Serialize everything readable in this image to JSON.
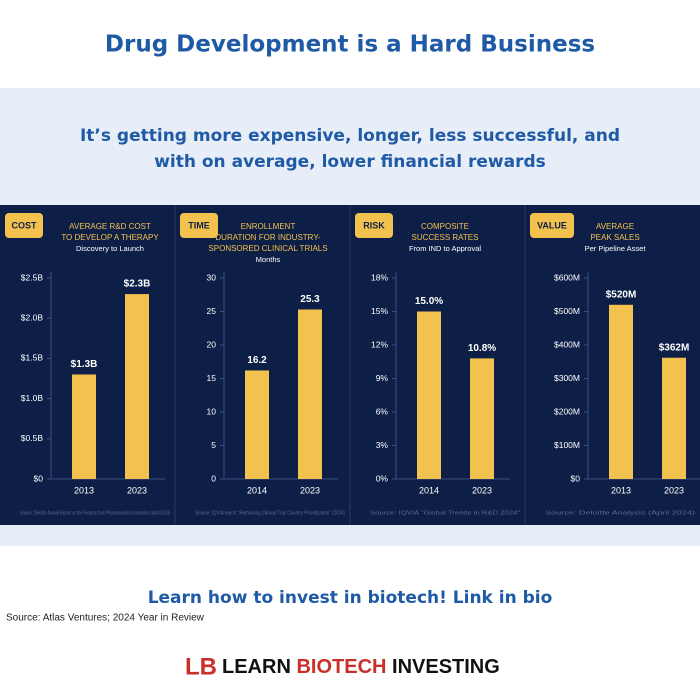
{
  "header": {
    "title": "Drug Development is a Hard Business",
    "subtitle": [
      "It’s getting more expensive, longer, less successful, and",
      "with on average, lower financial rewards"
    ]
  },
  "footer": {
    "cta": "Learn how to invest in biotech! Link in bio",
    "source": "Source: Atlas Ventures; 2024 Year in Review",
    "logo_mark": "LB",
    "logo": [
      "LEARN",
      "BIOTECH",
      "INVESTING"
    ]
  },
  "chart_data": [
    {
      "type": "bar",
      "tag": "COST",
      "title": [
        "AVERAGE R&D COST",
        "TO DEVELOP A THERAPY"
      ],
      "subtitle": "Discovery to Launch",
      "categories": [
        "2013",
        "2023"
      ],
      "values": [
        1.3,
        2.3
      ],
      "value_labels": [
        "$1.3B",
        "$2.3B"
      ],
      "color": "#f2c14e",
      "ylim": [
        0,
        2.5
      ],
      "yticks": [
        {
          "value": 0,
          "label": "$0"
        },
        {
          "value": 0.5,
          "label": "$0.5B"
        },
        {
          "value": 1,
          "label": "$1.0B"
        },
        {
          "value": 1.5,
          "label": "$1.5B"
        },
        {
          "value": 2,
          "label": "$2.0B"
        },
        {
          "value": 2.5,
          "label": "$2.5B"
        }
      ],
      "source": "Source: Deloitte Annual Report on the Returns from Pharmaceutical Innovation (April 2024)"
    },
    {
      "type": "bar",
      "tag": "TIME",
      "title": [
        "ENROLLMENT",
        "DURATION FOR INDUSTRY-",
        "SPONSORED CLINICAL TRIALS"
      ],
      "subtitle": "Months",
      "categories": [
        "2014",
        "2023"
      ],
      "values": [
        16.2,
        25.3
      ],
      "color": "#f2c14e",
      "ylim": [
        0,
        30
      ],
      "yticks": [
        0,
        5,
        10,
        15,
        20,
        25,
        30
      ],
      "source": "Source: IQVIA report \"Rethinking Clinical Trial Country Prioritization\" (2024)"
    },
    {
      "type": "bar",
      "tag": "RISK",
      "title": [
        "COMPOSITE",
        "SUCCESS RATES"
      ],
      "subtitle": "From IND to Approval",
      "categories": [
        "2014",
        "2023"
      ],
      "values": [
        15.0,
        10.8
      ],
      "value_labels": [
        "15.0%",
        "10.8%"
      ],
      "color": "#f2c14e",
      "ylim": [
        0,
        18
      ],
      "yticks": [
        {
          "value": 0,
          "label": "0%"
        },
        {
          "value": 3,
          "label": "3%"
        },
        {
          "value": 6,
          "label": "6%"
        },
        {
          "value": 9,
          "label": "9%"
        },
        {
          "value": 12,
          "label": "12%"
        },
        {
          "value": 15,
          "label": "15%"
        },
        {
          "value": 18,
          "label": "18%"
        }
      ],
      "source": "Source: IQVIA \"Global Trends in R&D 2024\""
    },
    {
      "type": "bar",
      "tag": "VALUE",
      "title": [
        "AVERAGE",
        "PEAK SALES"
      ],
      "subtitle": "Per Pipeline Asset",
      "categories": [
        "2013",
        "2023"
      ],
      "values": [
        520,
        362
      ],
      "value_labels": [
        "$520M",
        "$362M"
      ],
      "color": "#f2c14e",
      "ylim": [
        0,
        600
      ],
      "yticks": [
        {
          "value": 0,
          "label": "$0"
        },
        {
          "value": 100,
          "label": "$100M"
        },
        {
          "value": 200,
          "label": "$200M"
        },
        {
          "value": 300,
          "label": "$300M"
        },
        {
          "value": 400,
          "label": "$400M"
        },
        {
          "value": 500,
          "label": "$500M"
        },
        {
          "value": 600,
          "label": "$600M"
        }
      ],
      "source": "Source: Deloitte Analysis (April 2024)"
    }
  ]
}
